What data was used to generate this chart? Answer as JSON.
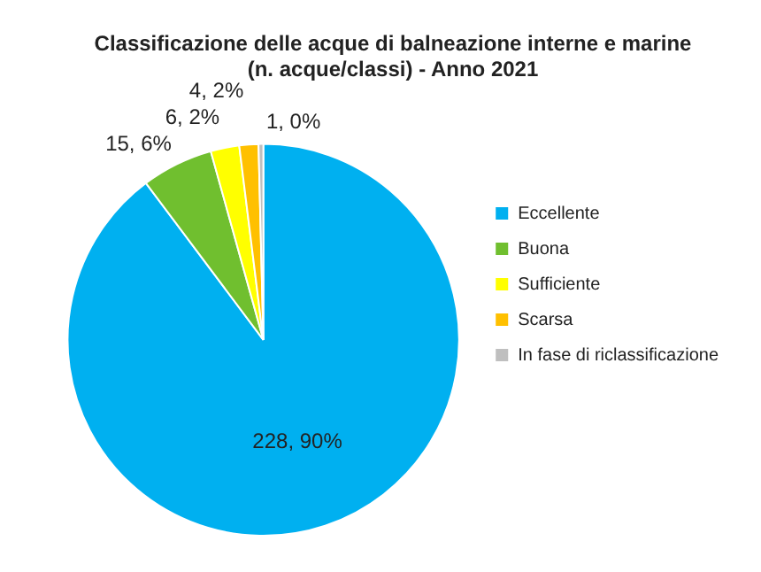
{
  "chart_data": {
    "type": "pie",
    "title": "Classificazione delle acque di balneazione interne e marine\n(n. acque/classi) - Anno 2021",
    "categories": [
      "Eccellente",
      "Buona",
      "Sufficiente",
      "Scarsa",
      "In fase di riclassificazione"
    ],
    "values": [
      228,
      15,
      6,
      4,
      1
    ],
    "colors": [
      "#00b0f0",
      "#70bf2f",
      "#ffff00",
      "#ffc000",
      "#bfbfbf"
    ],
    "value_labels": [
      "228, 90%",
      "15, 6%",
      "6, 2%",
      "4, 2%",
      "1, 0%"
    ],
    "legend": "right"
  }
}
